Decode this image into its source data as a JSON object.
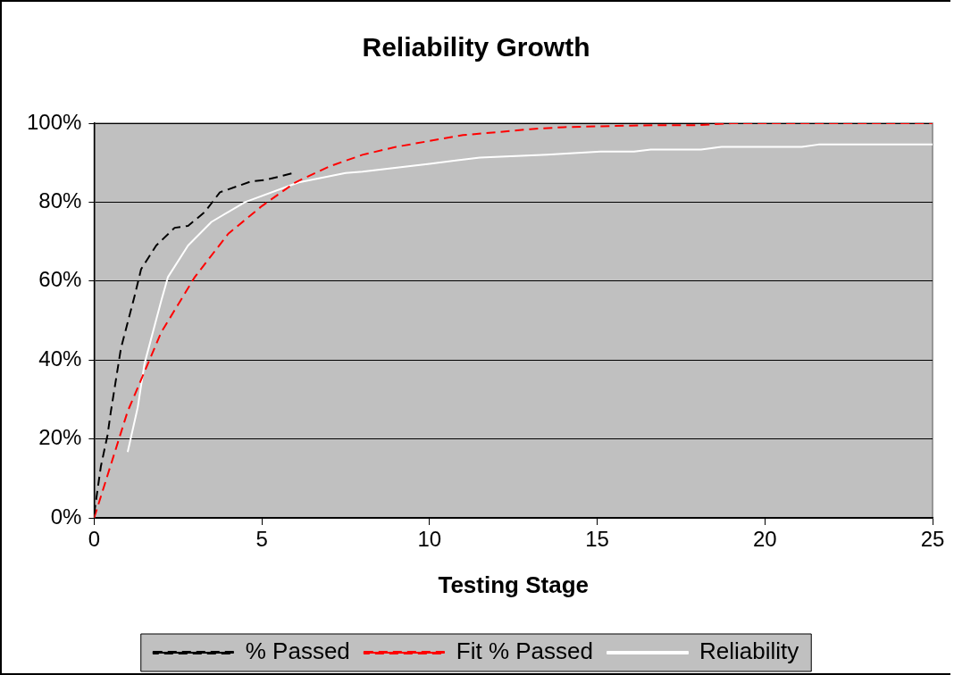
{
  "chart_data": {
    "type": "line",
    "title": "Reliability Growth",
    "xlabel": "Testing Stage",
    "xlim": [
      0,
      25
    ],
    "xticks": [
      0,
      5,
      10,
      15,
      20,
      25
    ],
    "ylim": [
      0,
      100
    ],
    "yticks": [
      {
        "value": 0,
        "label": "0%"
      },
      {
        "value": 20,
        "label": "20%"
      },
      {
        "value": 40,
        "label": "40%"
      },
      {
        "value": 60,
        "label": "60%"
      },
      {
        "value": 80,
        "label": "80%"
      },
      {
        "value": 100,
        "label": "100%"
      }
    ],
    "grid": "y",
    "legend": "bottom",
    "marker": "none",
    "series": [
      {
        "name": "% Passed",
        "color": "#000000",
        "line_style": "dashed",
        "x": [
          0,
          0.1,
          0.2,
          0.4,
          0.5,
          0.8,
          1.2,
          1.4,
          1.85,
          2.4,
          2.8,
          3.3,
          3.75,
          4.7,
          5.1,
          5.9
        ],
        "values": [
          1,
          7,
          13,
          21,
          27,
          43,
          56,
          63,
          69,
          73.5,
          74,
          77.5,
          82.5,
          85.3,
          85.6,
          87.3
        ]
      },
      {
        "name": "Fit % Passed",
        "color": "#ff0000",
        "line_style": "dashed",
        "x": [
          0,
          1,
          2,
          3,
          4,
          5,
          6,
          7,
          8,
          9,
          10,
          11,
          12,
          13,
          14,
          15,
          16,
          17,
          18,
          19,
          20,
          21,
          22,
          23,
          24,
          25
        ],
        "values": [
          0,
          27,
          47,
          61,
          72,
          79,
          85,
          89,
          92,
          94,
          95.5,
          97,
          97.7,
          98.5,
          99,
          99.2,
          99.4,
          99.5,
          99.5,
          100,
          100,
          100,
          100,
          100,
          100,
          100
        ]
      },
      {
        "name": "Reliability",
        "color": "#ffffff",
        "line_style": "solid",
        "x": [
          1,
          1.3,
          1.5,
          2,
          2.2,
          2.8,
          3.5,
          4.5,
          6.1,
          7.5,
          8,
          10,
          11.5,
          13.5,
          15.1,
          16.1,
          16.6,
          18.1,
          18.7,
          21.1,
          21.6,
          25
        ],
        "values": [
          16.7,
          28,
          39,
          55,
          61,
          69,
          75,
          80,
          85,
          87.4,
          87.7,
          89.7,
          91.3,
          92,
          92.8,
          92.8,
          93.3,
          93.3,
          94,
          94,
          94.6,
          94.6
        ]
      }
    ]
  }
}
